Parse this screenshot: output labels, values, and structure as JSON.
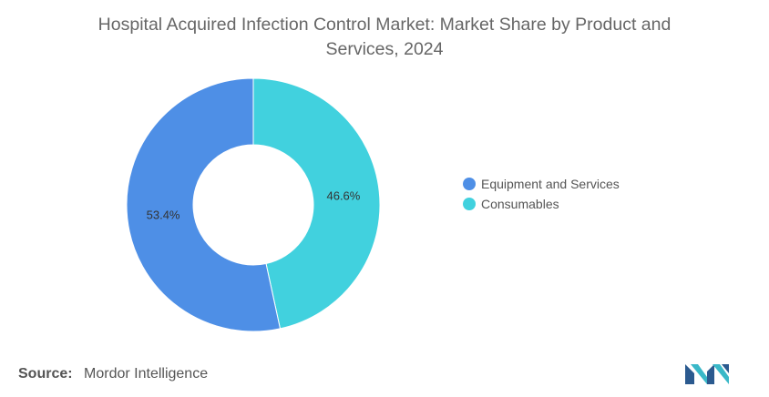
{
  "title_line1": "Hospital Acquired Infection Control Market: Market Share by Product and",
  "title_line2": "Services, 2024",
  "chart_data": {
    "type": "pie",
    "donut": true,
    "categories": [
      "Equipment and Services",
      "Consumables"
    ],
    "values": [
      53.4,
      46.6
    ],
    "labels": [
      "53.4%",
      "46.6%"
    ],
    "colors": [
      "#4e8fe6",
      "#41d1de"
    ],
    "legend_position": "right"
  },
  "legend": [
    {
      "label": "Equipment and Services",
      "color": "#4e8fe6"
    },
    {
      "label": "Consumables",
      "color": "#41d1de"
    }
  ],
  "source": {
    "label": "Source:",
    "text": "Mordor Intelligence"
  },
  "logo_icon": "mordor-intelligence-logo"
}
